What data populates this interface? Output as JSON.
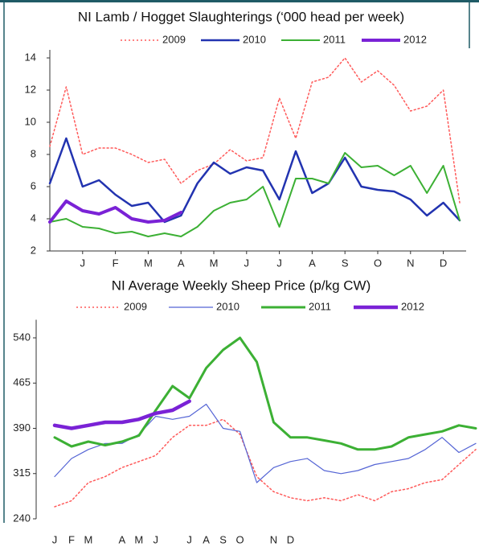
{
  "chart_data": [
    {
      "type": "line",
      "title": "NI Lamb / Hogget Slaughterings (‘000 head per  week)",
      "categories": [
        null,
        null,
        "J",
        null,
        "F",
        null,
        "M",
        null,
        "A",
        null,
        "M",
        null,
        "J",
        null,
        "J",
        null,
        "A",
        null,
        "S",
        null,
        "O",
        null,
        "N",
        null,
        "D",
        null
      ],
      "series": [
        {
          "name": "2009",
          "color": "#ff5a5a",
          "linestyle": "dotted",
          "linewidth": 1.5,
          "values": [
            8.5,
            12.2,
            8,
            8.4,
            8.4,
            8,
            7.5,
            7.7,
            6.2,
            7,
            7.4,
            8.3,
            7.6,
            7.8,
            11.5,
            9,
            12.5,
            12.8,
            14,
            12.5,
            13.2,
            12.3,
            10.7,
            11,
            12,
            5
          ]
        },
        {
          "name": "2010",
          "color": "#2233b0",
          "linestyle": "solid",
          "linewidth": 2.5,
          "values": [
            6.2,
            9,
            6,
            6.4,
            5.5,
            4.8,
            5,
            3.8,
            4.2,
            6.2,
            7.5,
            6.8,
            7.2,
            7,
            5.2,
            8.2,
            5.6,
            6.2,
            7.8,
            6,
            5.8,
            5.7,
            5.2,
            4.2,
            5,
            3.9
          ]
        },
        {
          "name": "2011",
          "color": "#3cb034",
          "linestyle": "solid",
          "linewidth": 2,
          "values": [
            3.8,
            4,
            3.5,
            3.4,
            3.1,
            3.2,
            2.9,
            3.1,
            2.9,
            3.5,
            4.5,
            5,
            5.2,
            6,
            3.5,
            6.5,
            6.5,
            6.2,
            8.1,
            7.2,
            7.3,
            6.7,
            7.3,
            5.6,
            7.3,
            3.9
          ]
        },
        {
          "name": "2012",
          "color": "#7a22d6",
          "linestyle": "solid",
          "linewidth": 4,
          "values": [
            3.8,
            5.1,
            4.5,
            4.3,
            4.7,
            4,
            3.8,
            3.9,
            4.4,
            null,
            null,
            null,
            null,
            null,
            null,
            null,
            null,
            null,
            null,
            null,
            null,
            null,
            null,
            null,
            null,
            null
          ]
        }
      ],
      "ylim": [
        2,
        14.5
      ],
      "yticks": [
        2,
        4,
        6,
        8,
        10,
        12,
        14
      ]
    },
    {
      "type": "line",
      "title": "NI Average Weekly Sheep Price (p/kg CW)",
      "categories": [
        "J",
        "F",
        "M",
        null,
        "A",
        "M",
        "J",
        null,
        "J",
        "A",
        "S",
        "O",
        null,
        "N",
        "D",
        null,
        null,
        null,
        null,
        null,
        null,
        null,
        null,
        null,
        null,
        null
      ],
      "series": [
        {
          "name": "2009",
          "color": "#ff5a5a",
          "linestyle": "dotted",
          "linewidth": 1.5,
          "values": [
            260,
            270,
            300,
            310,
            325,
            335,
            345,
            375,
            395,
            395,
            405,
            380,
            310,
            285,
            275,
            270,
            275,
            270,
            280,
            270,
            285,
            290,
            300,
            305,
            330,
            355
          ]
        },
        {
          "name": "2010",
          "color": "#5565d5",
          "linestyle": "solid",
          "linewidth": 1.2,
          "values": [
            310,
            340,
            355,
            365,
            365,
            380,
            410,
            405,
            410,
            430,
            390,
            385,
            300,
            325,
            335,
            340,
            320,
            315,
            320,
            330,
            335,
            340,
            355,
            375,
            350,
            365
          ]
        },
        {
          "name": "2011",
          "color": "#3cb034",
          "linestyle": "solid",
          "linewidth": 3,
          "values": [
            375,
            360,
            368,
            362,
            368,
            378,
            420,
            460,
            440,
            490,
            520,
            540,
            500,
            400,
            375,
            375,
            370,
            365,
            355,
            355,
            360,
            375,
            380,
            385,
            395,
            390
          ]
        },
        {
          "name": "2012",
          "color": "#7a22d6",
          "linestyle": "solid",
          "linewidth": 4.5,
          "values": [
            395,
            390,
            395,
            400,
            400,
            405,
            415,
            420,
            435,
            null,
            null,
            null,
            null,
            null,
            null,
            null,
            null,
            null,
            null,
            null,
            null,
            null,
            null,
            null,
            null,
            null
          ]
        }
      ],
      "ylim": [
        240,
        570
      ],
      "yticks": [
        240,
        315,
        390,
        465,
        540
      ]
    }
  ]
}
